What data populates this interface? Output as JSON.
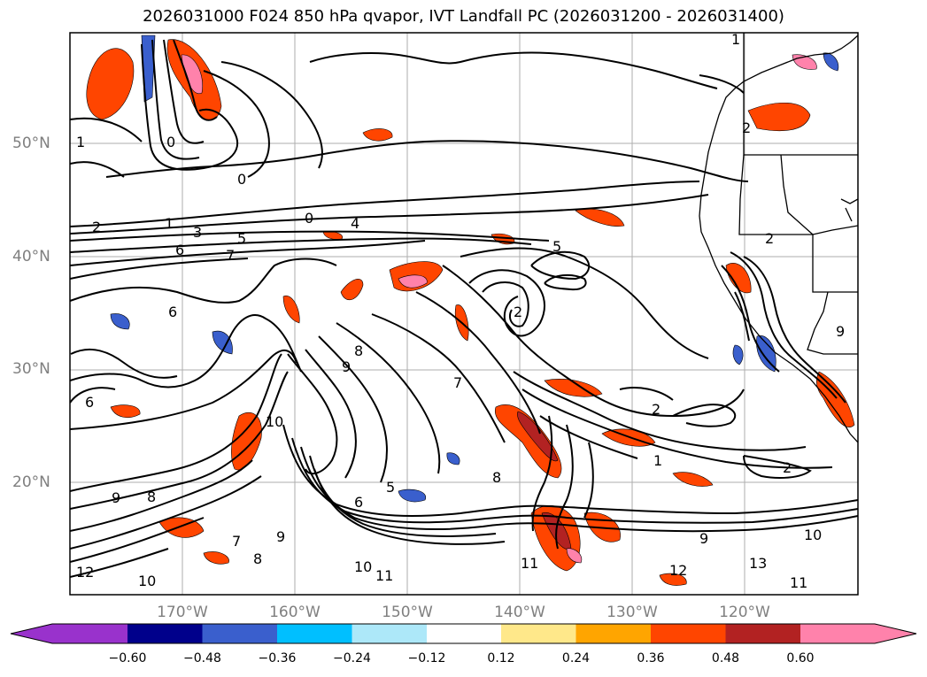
{
  "title": "2026031000 F024 850 hPa qvapor, IVT Landfall PC (2026031200 - 2026031400)",
  "lat_labels": [
    "50°N",
    "40°N",
    "30°N",
    "20°N"
  ],
  "lon_labels": [
    "170°W",
    "160°W",
    "150°W",
    "140°W",
    "130°W",
    "120°W"
  ],
  "colorbar": {
    "ticks": [
      "−0.60",
      "−0.48",
      "−0.36",
      "−0.24",
      "−0.12",
      "0.12",
      "0.24",
      "0.36",
      "0.48",
      "0.60"
    ],
    "colors": [
      "#9932cc",
      "#00008b",
      "#3a5fcd",
      "#00bfff",
      "#ade8f9",
      "#ffffff",
      "#ffe88a",
      "#ffa500",
      "#ff4500",
      "#b22222",
      "#ff82ab"
    ]
  },
  "contour_labels": [
    {
      "t": "2"
    },
    {
      "t": "1"
    },
    {
      "t": "3"
    },
    {
      "t": "5"
    },
    {
      "t": "6"
    },
    {
      "t": "7"
    },
    {
      "t": "0"
    },
    {
      "t": "4"
    },
    {
      "t": "0"
    },
    {
      "t": "1"
    },
    {
      "t": "0"
    },
    {
      "t": "5"
    },
    {
      "t": "2"
    },
    {
      "t": "6"
    },
    {
      "t": "6"
    },
    {
      "t": "8"
    },
    {
      "t": "9"
    },
    {
      "t": "7"
    },
    {
      "t": "10"
    },
    {
      "t": "2"
    },
    {
      "t": "1"
    },
    {
      "t": "2"
    },
    {
      "t": "8"
    },
    {
      "t": "5"
    },
    {
      "t": "6"
    },
    {
      "t": "9"
    },
    {
      "t": "8"
    },
    {
      "t": "7"
    },
    {
      "t": "9"
    },
    {
      "t": "8"
    },
    {
      "t": "10"
    },
    {
      "t": "11"
    },
    {
      "t": "10"
    },
    {
      "t": "11"
    },
    {
      "t": "12"
    },
    {
      "t": "9"
    },
    {
      "t": "12"
    },
    {
      "t": "13"
    },
    {
      "t": "11"
    },
    {
      "t": "10"
    },
    {
      "t": "2"
    },
    {
      "t": "1"
    },
    {
      "t": "2"
    },
    {
      "t": "9"
    }
  ]
}
